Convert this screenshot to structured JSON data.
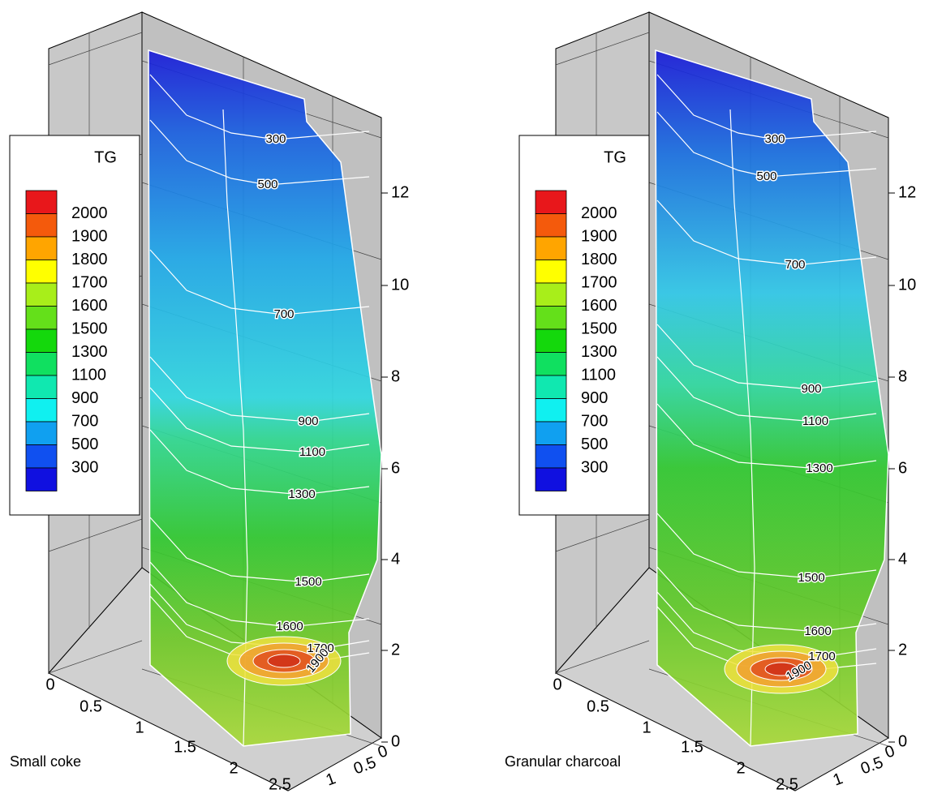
{
  "panels": [
    {
      "caption": "Small coke",
      "legend": {
        "title": "TG",
        "levels": [
          2000,
          1900,
          1800,
          1700,
          1600,
          1500,
          1300,
          1100,
          900,
          700,
          500,
          300
        ],
        "colors": [
          "#e8171b",
          "#f45a0c",
          "#ffa500",
          "#ffff00",
          "#a8ee1a",
          "#64e01a",
          "#14d80c",
          "#10e060",
          "#10e8b0",
          "#10f0f0",
          "#10a0f0",
          "#1050f0",
          "#1010e0"
        ]
      },
      "z_ticks": [
        0,
        2,
        4,
        6,
        8,
        10,
        12
      ],
      "x_ticks": [
        0,
        0.5,
        1,
        1.5,
        2,
        2.5
      ],
      "y_ticks": [
        0,
        0.5,
        1
      ],
      "contour_labels": [
        300,
        500,
        700,
        900,
        1100,
        1300,
        1500,
        1600,
        1700,
        1900
      ]
    },
    {
      "caption": "Granular charcoal",
      "legend": {
        "title": "TG",
        "levels": [
          2000,
          1900,
          1800,
          1700,
          1600,
          1500,
          1300,
          1100,
          900,
          700,
          500,
          300
        ],
        "colors": [
          "#e8171b",
          "#f45a0c",
          "#ffa500",
          "#ffff00",
          "#a8ee1a",
          "#64e01a",
          "#14d80c",
          "#10e060",
          "#10e8b0",
          "#10f0f0",
          "#10a0f0",
          "#1050f0",
          "#1010e0"
        ]
      },
      "z_ticks": [
        0,
        2,
        4,
        6,
        8,
        10,
        12
      ],
      "x_ticks": [
        0,
        0.5,
        1,
        1.5,
        2,
        2.5
      ],
      "y_ticks": [
        0,
        0.5,
        1
      ],
      "contour_labels": [
        300,
        500,
        700,
        900,
        1100,
        1300,
        1500,
        1600,
        1700,
        1900
      ]
    }
  ]
}
